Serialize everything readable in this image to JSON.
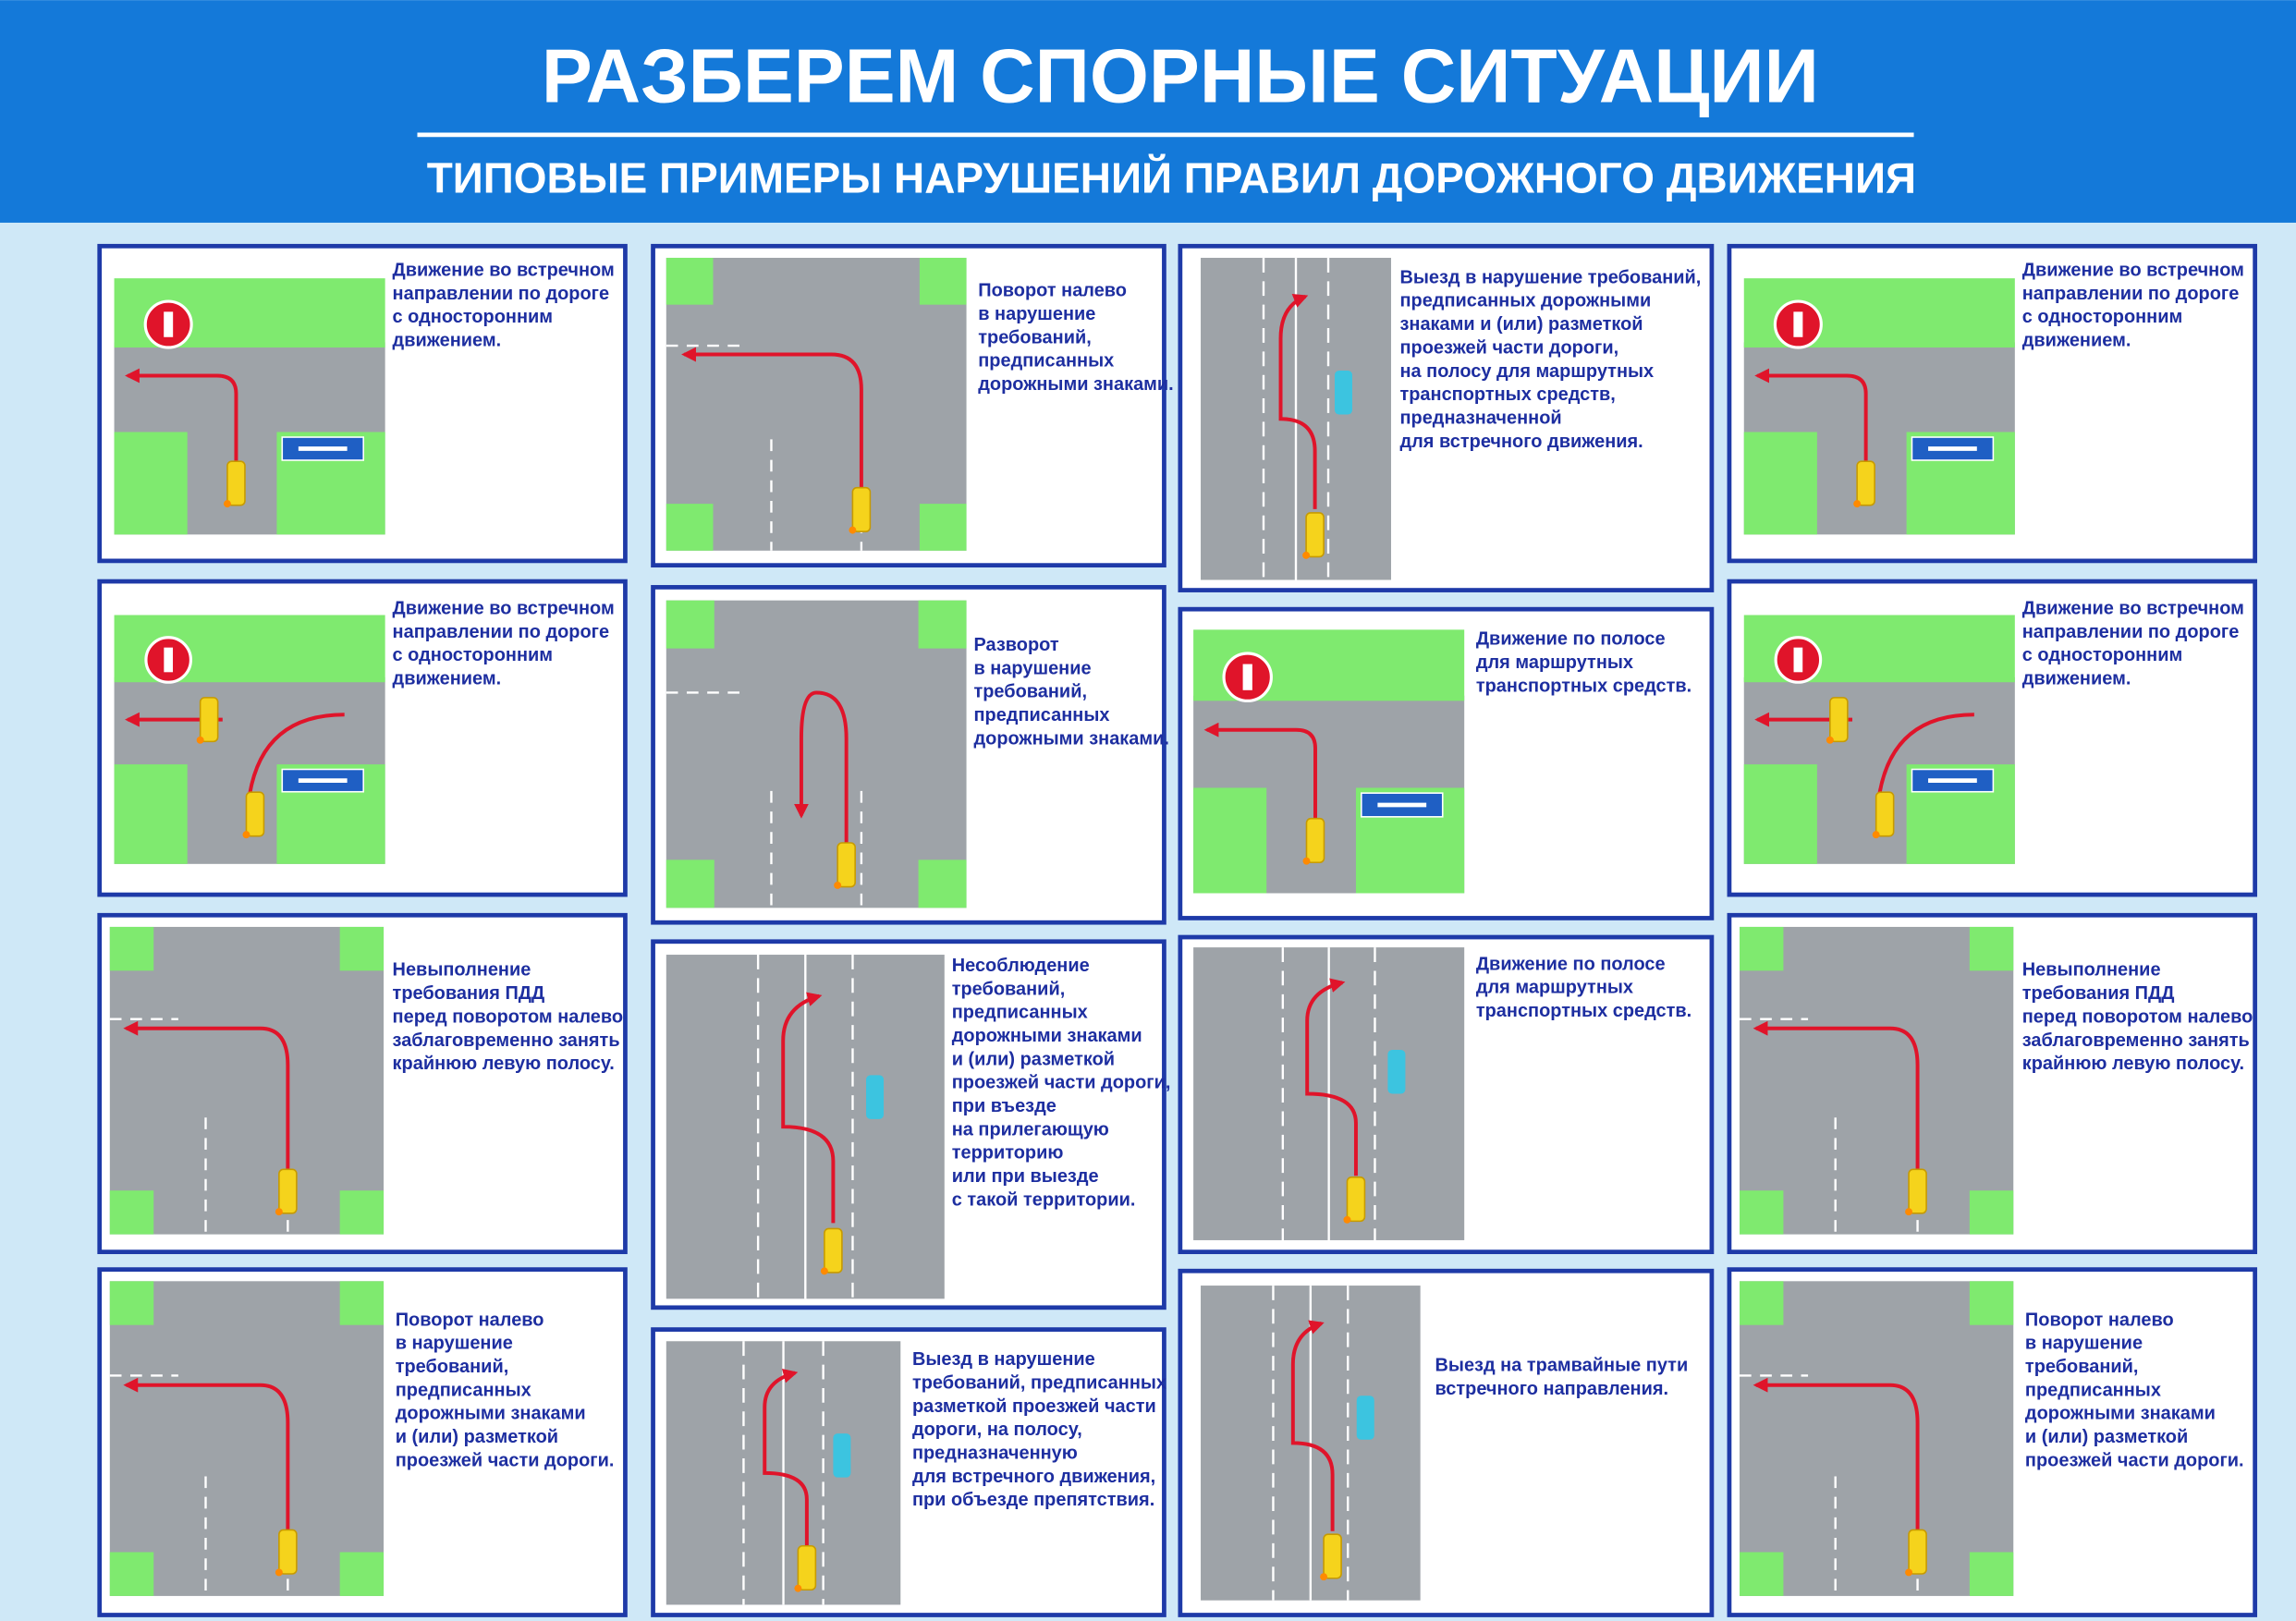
{
  "header": {
    "title": "РАЗБЕРЕМ СПОРНЫЕ СИТУАЦИИ",
    "subtitle": "ТИПОВЫЕ ПРИМЕРЫ НАРУШЕНИЙ ПРАВИЛ ДОРОЖНОГО ДВИЖЕНИЯ"
  },
  "panels": [
    {
      "lines": [
        "Движение во встречном",
        "направлении по дороге",
        "с односторонним",
        "движением."
      ]
    },
    {
      "lines": [
        "Движение во встречном",
        "направлении по дороге",
        "с односторонним",
        "движением."
      ]
    },
    {
      "lines": [
        "Невыполнение",
        "требования ПДД",
        "перед поворотом налево",
        "заблаговременно занять",
        "крайнюю левую полосу."
      ]
    },
    {
      "lines": [
        "Поворот налево",
        "в нарушение",
        "требований,",
        "предписанных",
        "дорожными знаками",
        "и (или) разметкой",
        "проезжей части дороги."
      ]
    },
    {
      "lines": [
        "Поворот налево",
        "в нарушение",
        "требований,",
        "предписанных",
        "дорожными знаками."
      ]
    },
    {
      "lines": [
        "Разворот",
        "в нарушение",
        "требований,",
        "предписанных",
        "дорожными знаками."
      ]
    },
    {
      "lines": [
        "Несоблюдение",
        "требований,",
        "предписанных",
        "дорожными знаками",
        "и (или) разметкой",
        "проезжей части дороги,",
        "при въезде",
        "на прилегающую",
        "территорию",
        "или при выезде",
        "с такой территории."
      ]
    },
    {
      "lines": [
        "Выезд в нарушение",
        "требований, предписанных",
        "разметкой проезжей части",
        "дороги, на полосу,",
        "предназначенную",
        "для встречного движения,",
        "при объезде препятствия."
      ]
    },
    {
      "lines": [
        "Выезд в нарушение требований,",
        "предписанных дорожными",
        "знаками и (или) разметкой",
        "проезжей части дороги,",
        "на полосу для маршрутных",
        "транспортных средств,",
        "предназначенной",
        "для встречного движения."
      ]
    },
    {
      "lines": [
        "Движение по полосе",
        "для маршрутных",
        "транспортных средств."
      ]
    },
    {
      "lines": [
        "Движение по полосе",
        "для маршрутных",
        "транспортных средств."
      ]
    },
    {
      "lines": [
        "Выезд на трамвайные пути",
        "встречного направления."
      ]
    },
    {
      "lines": [
        "Движение во встречном",
        "направлении по дороге",
        "с односторонним",
        "движением."
      ]
    },
    {
      "lines": [
        "Движение во встречном",
        "направлении по дороге",
        "с односторонним",
        "движением."
      ]
    },
    {
      "lines": [
        "Невыполнение",
        "требования ПДД",
        "перед поворотом налево",
        "заблаговременно занять",
        "крайнюю левую полосу."
      ]
    },
    {
      "lines": [
        "Поворот налево",
        "в нарушение",
        "требований,",
        "предписанных",
        "дорожными знаками",
        "и (или) разметкой",
        "проезжей части дороги."
      ]
    }
  ]
}
